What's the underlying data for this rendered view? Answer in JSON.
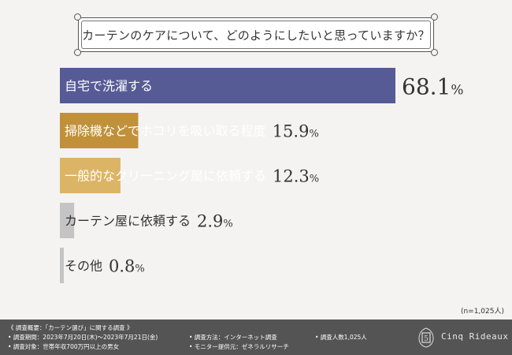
{
  "title": "カーテンのケアについて、どのようにしたいと思っていますか？",
  "sample_note": "(n=1,025人)",
  "chart_data": {
    "type": "bar",
    "orientation": "horizontal",
    "title": "カーテンのケアについて、どのようにしたいと思っていますか？",
    "categories": [
      "自宅で洗濯する",
      "掃除機などでホコリを吸い取る程度",
      "一般的なクリーニング屋に依頼する",
      "カーテン屋に依頼する",
      "その他"
    ],
    "values": [
      68.1,
      15.9,
      12.3,
      2.9,
      0.8
    ],
    "value_labels": [
      "68.1",
      "15.9",
      "12.3",
      "2.9",
      "0.8"
    ],
    "unit": "%",
    "colors": [
      "#565b96",
      "#c0913a",
      "#dcb466",
      "#c4c4c4",
      "#c4c4c4"
    ],
    "xlim": [
      0,
      100
    ]
  },
  "footer": {
    "survey_summary": "《 調査概要：「カーテン選び」に関する調査 》",
    "survey_period": "• 調査期間：2023年7月20日(木)～2023年7月21日(金)",
    "survey_target": "• 調査対象：世帯年収700万円以上の男女",
    "survey_method": "• 調査方法：インターネット調査",
    "monitor_provider": "• モニター提供元：ゼネラルリサーチ",
    "respondents": "• 調査人数1,025人",
    "logo_emblem": "5",
    "brand": "Cinq Rideaux"
  }
}
